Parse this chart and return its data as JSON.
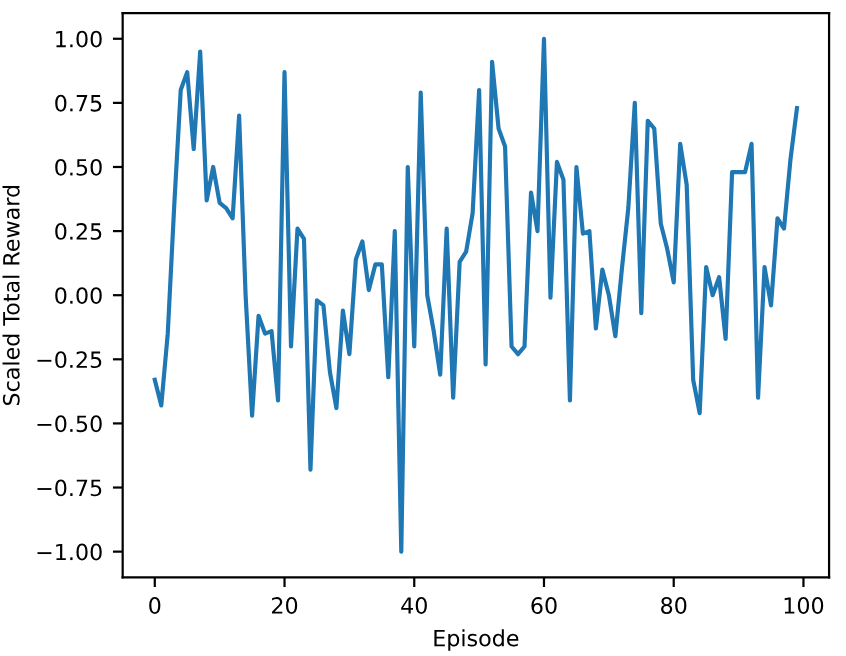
{
  "chart_data": {
    "type": "line",
    "xlabel": "Episode",
    "ylabel": "Scaled Total Reward",
    "x": [
      0,
      1,
      2,
      3,
      4,
      5,
      6,
      7,
      8,
      9,
      10,
      11,
      12,
      13,
      14,
      15,
      16,
      17,
      18,
      19,
      20,
      21,
      22,
      23,
      24,
      25,
      26,
      27,
      28,
      29,
      30,
      31,
      32,
      33,
      34,
      35,
      36,
      37,
      38,
      39,
      40,
      41,
      42,
      43,
      44,
      45,
      46,
      47,
      48,
      49,
      50,
      51,
      52,
      53,
      54,
      55,
      56,
      57,
      58,
      59,
      60,
      61,
      62,
      63,
      64,
      65,
      66,
      67,
      68,
      69,
      70,
      71,
      72,
      73,
      74,
      75,
      76,
      77,
      78,
      79,
      80,
      81,
      82,
      83,
      84,
      85,
      86,
      87,
      88,
      89,
      90,
      91,
      92,
      93,
      94,
      95,
      96,
      97,
      98,
      99
    ],
    "series": [
      {
        "color": "#1f77b4",
        "values": [
          -0.33,
          -0.43,
          -0.15,
          0.35,
          0.8,
          0.87,
          0.57,
          0.95,
          0.37,
          0.5,
          0.36,
          0.34,
          0.3,
          0.7,
          0.0,
          -0.47,
          -0.08,
          -0.15,
          -0.14,
          -0.41,
          0.87,
          -0.2,
          0.26,
          0.22,
          -0.68,
          -0.02,
          -0.04,
          -0.3,
          -0.44,
          -0.06,
          -0.23,
          0.14,
          0.21,
          0.02,
          0.12,
          0.12,
          -0.32,
          0.25,
          -1.0,
          0.5,
          -0.2,
          0.79,
          0.0,
          -0.14,
          -0.31,
          0.26,
          -0.4,
          0.13,
          0.17,
          0.32,
          0.8,
          -0.27,
          0.91,
          0.65,
          0.58,
          -0.2,
          -0.23,
          -0.2,
          0.4,
          0.25,
          1.0,
          -0.01,
          0.52,
          0.45,
          -0.41,
          0.5,
          0.24,
          0.25,
          -0.13,
          0.1,
          0.0,
          -0.16,
          0.1,
          0.34,
          0.75,
          -0.07,
          0.68,
          0.65,
          0.28,
          0.18,
          0.05,
          0.59,
          0.43,
          -0.33,
          -0.46,
          0.11,
          0.0,
          0.07,
          -0.17,
          0.48,
          0.48,
          0.48,
          0.59,
          -0.4,
          0.11,
          -0.04,
          0.3,
          0.26,
          0.53,
          0.73
        ]
      }
    ],
    "xlim": [
      -4.95,
      103.95
    ],
    "ylim": [
      -1.1,
      1.1
    ],
    "xticks": [
      0,
      20,
      40,
      60,
      80,
      100
    ],
    "yticks": [
      {
        "value": -1,
        "label": "−1.00"
      },
      {
        "value": -0.75,
        "label": "−0.75"
      },
      {
        "value": -0.5,
        "label": "−0.50"
      },
      {
        "value": -0.25,
        "label": "−0.25"
      },
      {
        "value": 0,
        "label": "0.00"
      },
      {
        "value": 0.25,
        "label": "0.25"
      },
      {
        "value": 0.5,
        "label": "0.50"
      },
      {
        "value": 0.75,
        "label": "0.75"
      },
      {
        "value": 1,
        "label": "1.00"
      }
    ],
    "grid": false,
    "legend": false
  }
}
